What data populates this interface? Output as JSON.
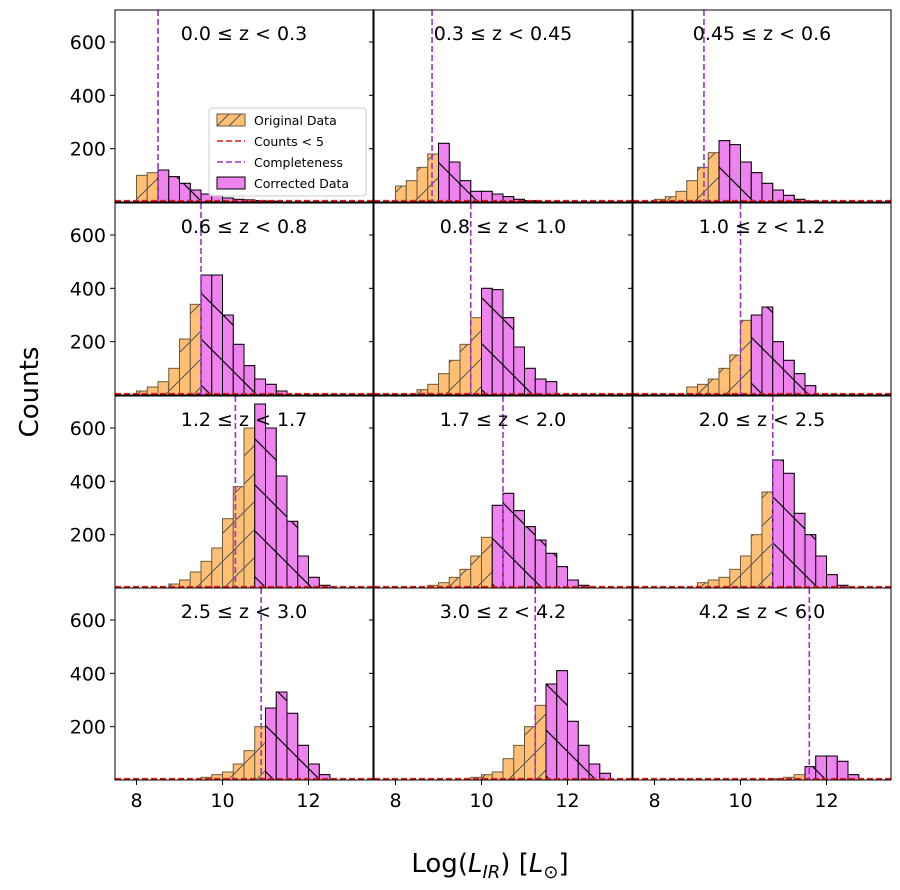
{
  "figure": {
    "ylabel": "Counts",
    "xlabel_prefix": "Log(",
    "xlabel_var": "L",
    "xlabel_sub": "IR",
    "xlabel_suffix": ") [",
    "xlabel_unit": "L",
    "xlabel_unit_sub": "⊙",
    "xlabel_close": "]"
  },
  "legend": {
    "items": [
      {
        "key": "original",
        "label": "Original Data",
        "color": "#ffbf75"
      },
      {
        "key": "counts5",
        "label": "Counts < 5",
        "color": "#e41a1c"
      },
      {
        "key": "completeness",
        "label": "Completeness",
        "color": "#9932cc"
      },
      {
        "key": "corrected",
        "label": "Corrected Data",
        "color": "#ee82ee"
      }
    ]
  },
  "axes": {
    "xlim": [
      7.5,
      13.5
    ],
    "ylim": [
      0,
      720
    ],
    "xticks": [
      8,
      10,
      12
    ],
    "yticks": [
      200,
      400,
      600
    ],
    "bin_width": 0.25,
    "hline_counts5": 5
  },
  "chart_data": [
    {
      "type": "histogram",
      "title": "0.0 ≤ z < 0.3",
      "completeness": 8.5,
      "bin_start": 8.0,
      "original": [
        100,
        110,
        120,
        95,
        70,
        45,
        30,
        25,
        15,
        10,
        8,
        5,
        3
      ],
      "corrected": [
        0,
        0,
        120,
        95,
        70,
        45,
        30,
        25,
        15,
        10,
        8,
        5,
        3
      ]
    },
    {
      "type": "histogram",
      "title": "0.3 ≤ z < 0.45",
      "completeness": 8.85,
      "bin_start": 8.0,
      "original": [
        60,
        80,
        130,
        180,
        220,
        150,
        80,
        40,
        40,
        30,
        20,
        10,
        5
      ],
      "corrected": [
        0,
        0,
        0,
        0,
        220,
        150,
        80,
        40,
        40,
        30,
        20,
        10,
        5
      ]
    },
    {
      "type": "histogram",
      "title": "0.45 ≤ z < 0.6",
      "completeness": 9.15,
      "bin_start": 8.0,
      "original": [
        10,
        20,
        40,
        80,
        130,
        185,
        230,
        215,
        150,
        110,
        70,
        45,
        25,
        10,
        3
      ],
      "corrected": [
        0,
        0,
        0,
        0,
        0,
        0,
        230,
        215,
        150,
        110,
        70,
        45,
        25,
        10,
        3
      ]
    },
    {
      "type": "histogram",
      "title": "0.6 ≤ z < 0.8",
      "completeness": 9.5,
      "bin_start": 8.0,
      "original": [
        15,
        30,
        50,
        100,
        210,
        340,
        450,
        450,
        300,
        190,
        110,
        60,
        40,
        15
      ],
      "corrected": [
        0,
        0,
        0,
        0,
        0,
        0,
        450,
        450,
        300,
        190,
        110,
        60,
        40,
        15
      ]
    },
    {
      "type": "histogram",
      "title": "0.8 ≤ z < 1.0",
      "completeness": 9.75,
      "bin_start": 8.5,
      "original": [
        20,
        40,
        80,
        130,
        190,
        290,
        400,
        395,
        290,
        180,
        100,
        60,
        50
      ],
      "corrected": [
        0,
        0,
        0,
        0,
        0,
        0,
        400,
        395,
        290,
        180,
        100,
        60,
        50
      ]
    },
    {
      "type": "histogram",
      "title": "1.0 ≤ z < 1.2",
      "completeness": 10.0,
      "bin_start": 8.75,
      "original": [
        30,
        40,
        60,
        100,
        150,
        280,
        300,
        330,
        200,
        130,
        80,
        35
      ],
      "corrected": [
        0,
        0,
        0,
        0,
        0,
        0,
        300,
        330,
        200,
        130,
        80,
        35
      ]
    },
    {
      "type": "histogram",
      "title": "1.2 ≤ z < 1.7",
      "completeness": 10.3,
      "bin_start": 8.75,
      "original": [
        15,
        30,
        60,
        100,
        150,
        260,
        380,
        600,
        690,
        600,
        420,
        250,
        120,
        40,
        10
      ],
      "corrected": [
        0,
        0,
        0,
        0,
        0,
        0,
        0,
        0,
        690,
        600,
        420,
        250,
        120,
        40,
        10
      ]
    },
    {
      "type": "histogram",
      "title": "1.7 ≤ z < 2.0",
      "completeness": 10.5,
      "bin_start": 8.75,
      "original": [
        10,
        20,
        40,
        70,
        120,
        190,
        310,
        355,
        290,
        230,
        180,
        130,
        80,
        30,
        10
      ],
      "corrected": [
        0,
        0,
        0,
        0,
        0,
        0,
        310,
        355,
        290,
        230,
        180,
        130,
        80,
        30,
        10
      ]
    },
    {
      "type": "histogram",
      "title": "2.0 ≤ z < 2.5",
      "completeness": 10.75,
      "bin_start": 9.0,
      "original": [
        20,
        30,
        40,
        70,
        120,
        200,
        360,
        480,
        430,
        280,
        200,
        120,
        50,
        10
      ],
      "corrected": [
        0,
        0,
        0,
        0,
        0,
        0,
        0,
        480,
        430,
        280,
        200,
        120,
        50,
        10
      ]
    },
    {
      "type": "histogram",
      "title": "2.5 ≤ z < 3.0",
      "completeness": 10.9,
      "bin_start": 9.5,
      "original": [
        10,
        20,
        30,
        60,
        110,
        200,
        270,
        330,
        250,
        130,
        60,
        20
      ],
      "corrected": [
        0,
        0,
        0,
        0,
        0,
        0,
        270,
        330,
        250,
        130,
        60,
        20
      ]
    },
    {
      "type": "histogram",
      "title": "3.0 ≤ z < 4.2",
      "completeness": 11.25,
      "bin_start": 9.75,
      "original": [
        10,
        20,
        30,
        80,
        130,
        200,
        280,
        360,
        410,
        220,
        130,
        60,
        25
      ],
      "corrected": [
        0,
        0,
        0,
        0,
        0,
        0,
        0,
        360,
        410,
        220,
        130,
        60,
        25
      ]
    },
    {
      "type": "histogram",
      "title": "4.2 ≤ z < 6.0",
      "completeness": 11.6,
      "bin_start": 10.75,
      "original": [
        5,
        10,
        20,
        50,
        90,
        90,
        70,
        20
      ],
      "corrected": [
        0,
        0,
        0,
        50,
        90,
        90,
        70,
        20
      ]
    }
  ]
}
